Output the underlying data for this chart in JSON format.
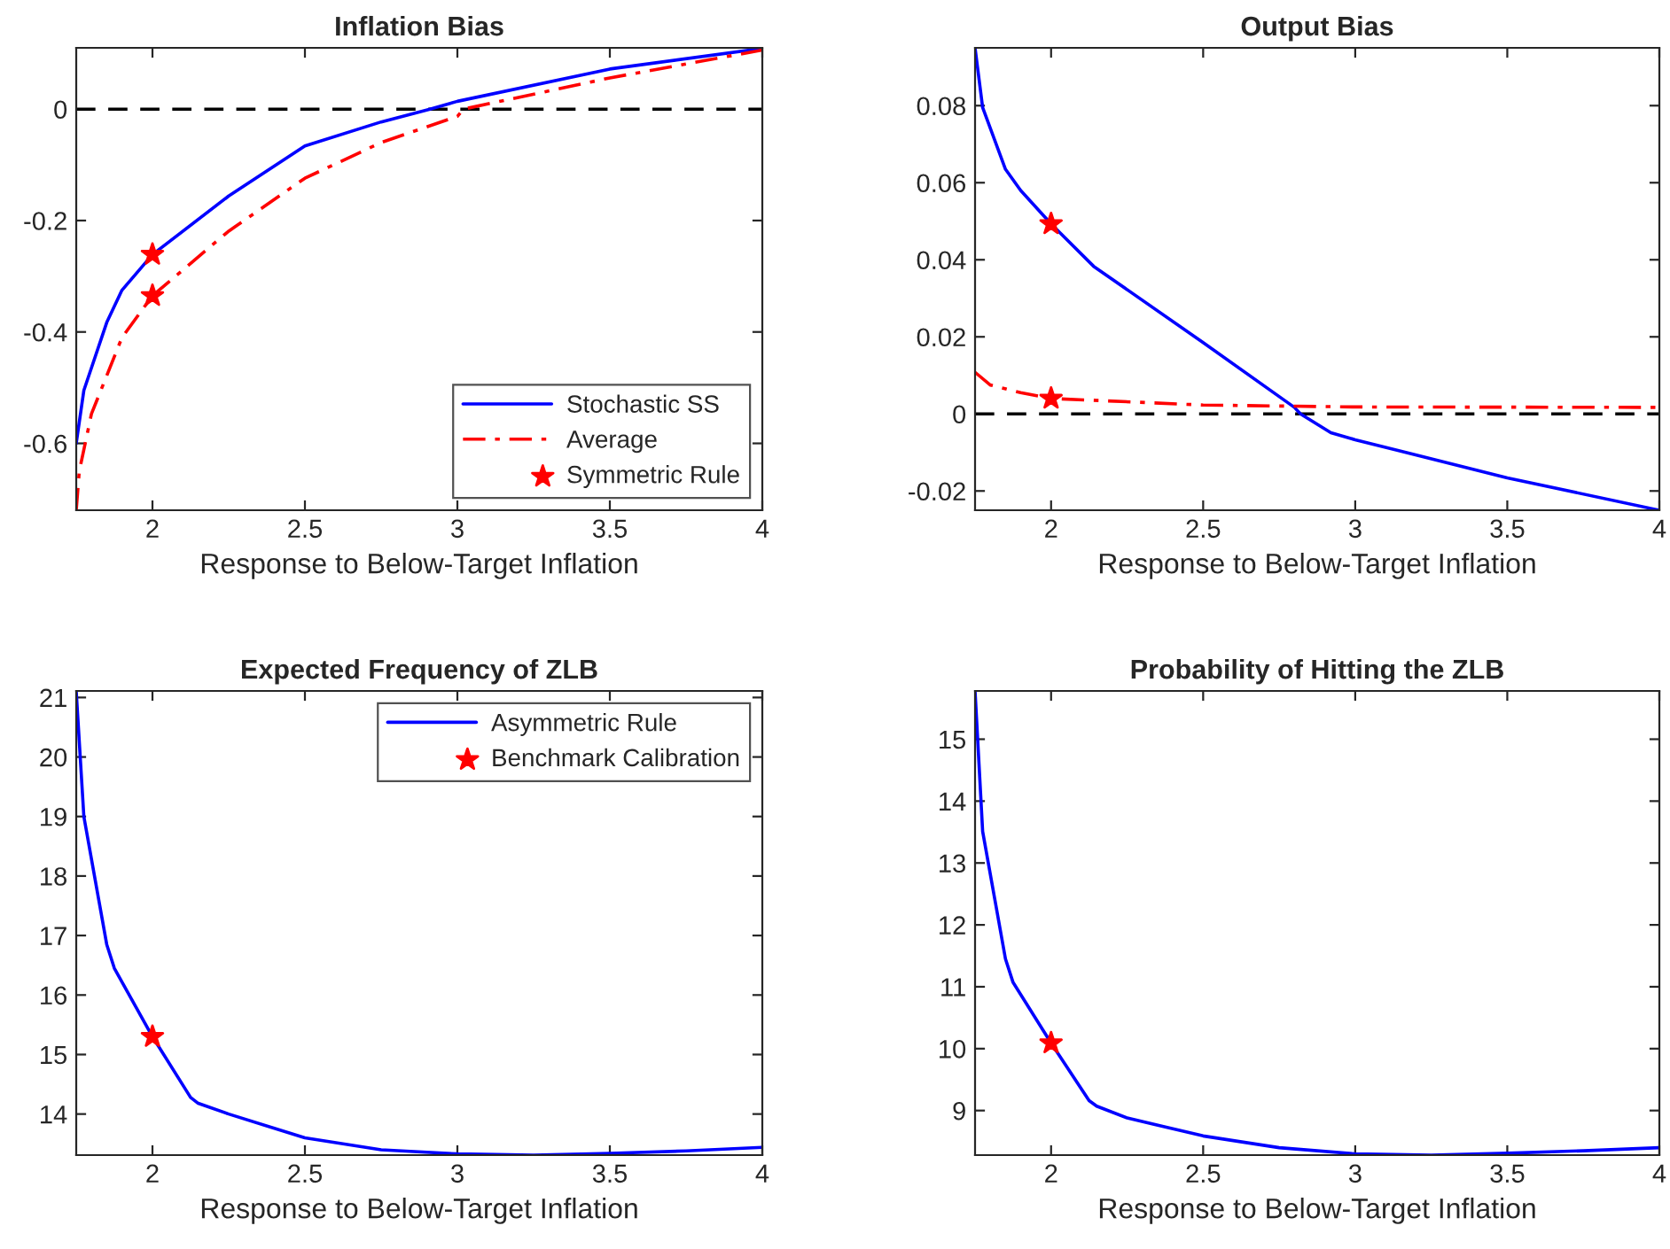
{
  "chart_data": [
    {
      "type": "line",
      "title": "Inflation Bias",
      "xlabel": "Response to Below-Target Inflation",
      "xlim": [
        1.75,
        4
      ],
      "xticks": [
        2,
        2.5,
        3,
        3.5,
        4
      ],
      "ylim": [
        -0.72,
        0.11
      ],
      "yticks": [
        -0.6,
        -0.4,
        -0.2,
        0
      ],
      "grid": false,
      "legend": "bottom right",
      "ref_lines": [
        {
          "axis": "y",
          "value": 0,
          "color": "#000000",
          "line_style": "dashed"
        }
      ],
      "series": [
        {
          "name": "Stochastic SS",
          "color": "#0000ff",
          "line_style": "solid",
          "marker": "none",
          "x": [
            1.75,
            1.775,
            1.85,
            1.9,
            2.0,
            2.25,
            2.5,
            2.75,
            2.91,
            3.0,
            3.5,
            4.0
          ],
          "values": [
            -0.6,
            -0.505,
            -0.383,
            -0.325,
            -0.261,
            -0.156,
            -0.066,
            -0.023,
            0,
            0.014,
            0.072,
            0.109
          ]
        },
        {
          "name": "Average",
          "color": "#ff0000",
          "line_style": "dashdot",
          "marker": "none",
          "x": [
            1.75,
            1.76,
            1.8,
            1.9,
            2.0,
            2.25,
            2.5,
            2.75,
            3.0,
            3.02,
            3.5,
            4.0
          ],
          "values": [
            -0.72,
            -0.65,
            -0.547,
            -0.41,
            -0.335,
            -0.219,
            -0.124,
            -0.06,
            -0.013,
            0,
            0.056,
            0.106
          ]
        },
        {
          "name": "Symmetric Rule",
          "type": "scatter",
          "color": "#ff0000",
          "marker": "star",
          "x": [
            2,
            2
          ],
          "values": [
            -0.261,
            -0.335
          ]
        }
      ]
    },
    {
      "type": "line",
      "title": "Output Bias",
      "xlabel": "Response to Below-Target Inflation",
      "xlim": [
        1.75,
        4
      ],
      "xticks": [
        2,
        2.5,
        3,
        3.5,
        4
      ],
      "ylim": [
        -0.025,
        0.095
      ],
      "yticks": [
        -0.02,
        0,
        0.02,
        0.04,
        0.06,
        0.08
      ],
      "grid": false,
      "legend": false,
      "ref_lines": [
        {
          "axis": "y",
          "value": 0,
          "color": "#000000",
          "line_style": "dashed"
        }
      ],
      "series": [
        {
          "color": "#0000ff",
          "line_style": "solid",
          "marker": "none",
          "x": [
            1.75,
            1.775,
            1.85,
            1.9,
            2.0,
            2.14,
            2.5,
            2.8,
            2.82,
            2.92,
            3.0,
            3.5,
            4.0
          ],
          "values": [
            0.095,
            0.0795,
            0.0635,
            0.058,
            0.0493,
            0.0383,
            0.0185,
            0.0017,
            0,
            -0.0049,
            -0.0067,
            -0.0166,
            -0.025
          ]
        },
        {
          "color": "#ff0000",
          "line_style": "dashdot",
          "marker": "none",
          "x": [
            1.75,
            1.8,
            1.9,
            2.0,
            2.5,
            3.0,
            4.0
          ],
          "values": [
            0.0108,
            0.0075,
            0.0055,
            0.004,
            0.0023,
            0.0018,
            0.0017
          ]
        },
        {
          "type": "scatter",
          "color": "#ff0000",
          "marker": "star",
          "x": [
            2,
            2
          ],
          "values": [
            0.0493,
            0.004
          ]
        }
      ]
    },
    {
      "type": "line",
      "title": "Expected Frequency of ZLB",
      "xlabel": "Response to Below-Target Inflation",
      "xlim": [
        1.75,
        4
      ],
      "xticks": [
        2,
        2.5,
        3,
        3.5,
        4
      ],
      "ylim": [
        13.31,
        21.11
      ],
      "yticks": [
        14,
        15,
        16,
        17,
        18,
        19,
        20,
        21
      ],
      "grid": false,
      "legend": "top right",
      "series": [
        {
          "name": "Asymmetric Rule",
          "color": "#0000ff",
          "line_style": "solid",
          "marker": "none",
          "x": [
            1.75,
            1.775,
            1.85,
            1.875,
            2.0,
            2.125,
            2.15,
            2.25,
            2.5,
            2.75,
            3.0,
            3.25,
            3.5,
            3.75,
            4.0
          ],
          "values": [
            21.1,
            19.0,
            16.85,
            16.45,
            15.3,
            14.28,
            14.18,
            14.0,
            13.6,
            13.4,
            13.33,
            13.31,
            13.34,
            13.38,
            13.44
          ]
        },
        {
          "name": "Benchmark Calibration",
          "type": "scatter",
          "color": "#ff0000",
          "marker": "star",
          "x": [
            2
          ],
          "values": [
            15.3
          ]
        }
      ]
    },
    {
      "type": "line",
      "title": "Probability of Hitting the ZLB",
      "xlabel": "Response to Below-Target Inflation",
      "xlim": [
        1.75,
        4
      ],
      "xticks": [
        2,
        2.5,
        3,
        3.5,
        4
      ],
      "ylim": [
        8.28,
        15.78
      ],
      "yticks": [
        9,
        10,
        11,
        12,
        13,
        14,
        15
      ],
      "grid": false,
      "legend": false,
      "series": [
        {
          "color": "#0000ff",
          "line_style": "solid",
          "marker": "none",
          "x": [
            1.75,
            1.775,
            1.85,
            1.875,
            2.0,
            2.125,
            2.15,
            2.25,
            2.5,
            2.75,
            3.0,
            3.25,
            3.5,
            3.75,
            4.0
          ],
          "values": [
            15.78,
            13.51,
            11.45,
            11.07,
            10.09,
            9.16,
            9.07,
            8.88,
            8.59,
            8.4,
            8.3,
            8.28,
            8.31,
            8.35,
            8.4
          ]
        },
        {
          "type": "scatter",
          "color": "#ff0000",
          "marker": "star",
          "x": [
            2
          ],
          "values": [
            10.09
          ]
        }
      ]
    }
  ]
}
